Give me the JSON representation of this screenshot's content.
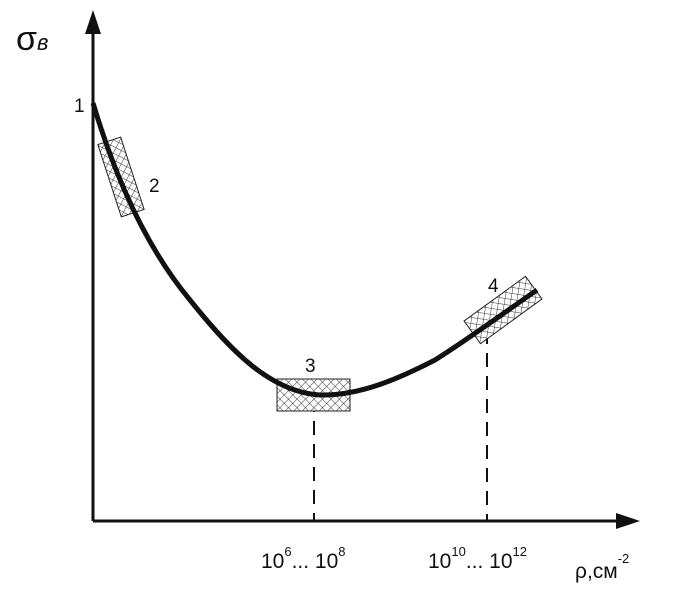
{
  "axes": {
    "y_label": {
      "symbol": "σ",
      "sub": "в"
    },
    "x_label": {
      "text": "ρ,см",
      "sup": "-2"
    }
  },
  "points": [
    {
      "label": "1"
    },
    {
      "label": "2"
    },
    {
      "label": "3"
    },
    {
      "label": "4"
    }
  ],
  "x_ticks": [
    {
      "base": "10",
      "exp": "6",
      "sep": "... 10",
      "exp2": "8"
    },
    {
      "base": "10",
      "exp": "10",
      "sep": "... 10",
      "exp2": "12"
    }
  ]
}
